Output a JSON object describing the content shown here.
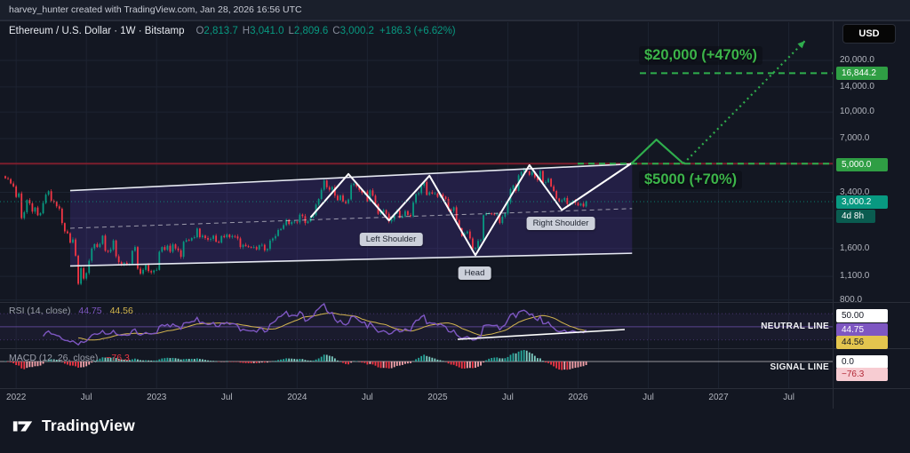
{
  "attribution": "harvey_hunter created with TradingView.com, Jan 28, 2026 16:56 UTC",
  "toolbar": {
    "currency_button": "USD"
  },
  "legend": {
    "symbol": "Ethereum / U.S. Dollar · 1W · Bitstamp",
    "o_label": "O",
    "o": "2,813.7",
    "h_label": "H",
    "h": "3,041.0",
    "l_label": "L",
    "l": "2,809.6",
    "c_label": "C",
    "c": "3,000.2",
    "change": "+186.3 (+6.62%)"
  },
  "price_axis": {
    "labels": [
      {
        "text": "20,000.0",
        "price": 20000
      },
      {
        "text": "14,000.0",
        "price": 14000
      },
      {
        "text": "10,000.0",
        "price": 10000
      },
      {
        "text": "7,000.0",
        "price": 7000
      },
      {
        "text": "3,400.0",
        "price": 3400
      },
      {
        "text": "1,600.0",
        "price": 1600
      },
      {
        "text": "1,100.0",
        "price": 1100
      },
      {
        "text": "800.0",
        "price": 800
      }
    ],
    "badges": {
      "target_high": "16,844.2",
      "target_low": "5,000.0",
      "last": "3,000.2",
      "countdown": "4d 8h"
    }
  },
  "annotations": {
    "target20k": "$20,000 (+470%)",
    "target5k": "$5000 (+70%)",
    "left_shoulder": "Left Shoulder",
    "head": "Head",
    "right_shoulder": "Right Shoulder",
    "neutral_line": "NEUTRAL LINE",
    "signal_line": "SIGNAL LINE"
  },
  "rsi": {
    "name": "RSI (14, close)",
    "value": "44.75",
    "ma": "44.56",
    "mid_badge": "50.00",
    "value_badge": "44.75",
    "ma_badge": "44.56"
  },
  "macd": {
    "name": "MACD (12, 26, close)",
    "value": "−76.3",
    "zero_badge": "0.0",
    "hist_badge": "−76.3"
  },
  "time_axis": [
    {
      "label": "2022",
      "week": 4
    },
    {
      "label": "Jul",
      "week": 30
    },
    {
      "label": "2023",
      "week": 56
    },
    {
      "label": "Jul",
      "week": 82
    },
    {
      "label": "2024",
      "week": 108
    },
    {
      "label": "Jul",
      "week": 134
    },
    {
      "label": "2025",
      "week": 160
    },
    {
      "label": "Jul",
      "week": 186
    },
    {
      "label": "2026",
      "week": 212
    },
    {
      "label": "Jul",
      "week": 238
    },
    {
      "label": "2027",
      "week": 264
    },
    {
      "label": "Jul",
      "week": 290
    }
  ],
  "logo": {
    "text": "TradingView"
  },
  "colors": {
    "up": "#089981",
    "down": "#f23645",
    "accent_green": "#3cb44a",
    "target_dash": "#2fae4d",
    "maroon": "#7c1f2d",
    "rsi": "#7e57c2",
    "rsi_ma": "#d4b64f",
    "channel_fill": "rgba(124,77,255,0.16)",
    "white": "#ffffff",
    "grid": "#1d2331",
    "separator": "#2a2e39",
    "badge_target": "#2f9e44",
    "badge_last": "#089981",
    "badge_countdown": "#0a5c50",
    "badge_neg_bg": "#f7ccd2",
    "badge_neg_text": "#b22836"
  },
  "chart_data": {
    "type": "candlestick",
    "symbol": "ETH/USD",
    "interval": "1W",
    "exchange": "Bitstamp",
    "scale": "log",
    "note": "approximate weekly closes, first value = late Dec 2021, last = Jan 2026",
    "ohlc_last": {
      "open": 2813.7,
      "high": 3041.0,
      "low": 2809.6,
      "close": 3000.2,
      "change": 186.3,
      "change_pct": 6.62
    },
    "y_ticks": [
      20000,
      14000,
      10000,
      7000,
      5000,
      3400,
      2400,
      1600,
      1100,
      800
    ],
    "weekly_closes": [
      4105,
      4060,
      3830,
      3682,
      3196,
      3351,
      2406,
      2603,
      3066,
      2930,
      2623,
      2773,
      2497,
      2566,
      2946,
      3294,
      3452,
      3037,
      2988,
      2817,
      2730,
      2250,
      2012,
      1962,
      1730,
      1805,
      1451,
      995,
      1228,
      1067,
      1150,
      1357,
      1600,
      1695,
      1630,
      1700,
      1900,
      1550,
      1530,
      1577,
      1780,
      1440,
      1330,
      1295,
      1320,
      1280,
      1300,
      1550,
      1630,
      1220,
      1140,
      1200,
      1280,
      1180,
      1160,
      1190,
      1200,
      1530,
      1630,
      1570,
      1660,
      1530,
      1690,
      1600,
      1560,
      1430,
      1750,
      1790,
      1780,
      1840,
      1860,
      2090,
      1860,
      1900,
      1840,
      1800,
      1820,
      1900,
      1750,
      1730,
      1890,
      1860,
      1930,
      1860,
      1890,
      1880,
      1830,
      1630,
      1680,
      1650,
      1630,
      1620,
      1630,
      1580,
      1670,
      1680,
      1560,
      1590,
      1780,
      1830,
      1890,
      2050,
      2080,
      2190,
      2350,
      2220,
      2280,
      2290,
      2270,
      2520,
      2470,
      2250,
      2300,
      2420,
      2500,
      2880,
      3110,
      3520,
      3990,
      3640,
      3520,
      3650,
      3250,
      3060,
      3260,
      3010,
      2940,
      3090,
      3750,
      3820,
      3680,
      3510,
      3380,
      3440,
      3010,
      3490,
      3250,
      2900,
      2550,
      2610,
      2680,
      2550,
      2300,
      2360,
      2560,
      2660,
      2420,
      2460,
      2640,
      2510,
      2470,
      2960,
      3320,
      3360,
      3720,
      3910,
      3280,
      3400,
      3340,
      3350,
      3200,
      3310,
      3210,
      3110,
      2700,
      2650,
      2780,
      2340,
      2100,
      1890,
      1960,
      2010,
      1830,
      1590,
      1610,
      1770,
      1790,
      2500,
      2550,
      2570,
      2530,
      2520,
      2550,
      2250,
      2450,
      2560,
      2970,
      3550,
      3730,
      3470,
      4270,
      4480,
      4620,
      4510,
      4300,
      4470,
      4150,
      4000,
      4530,
      3860,
      3890,
      4080,
      3680,
      3460,
      3130,
      3010,
      3050,
      3150,
      2900,
      2950,
      3030,
      2950,
      2850,
      2920,
      2813.7,
      3000.2
    ],
    "pattern": {
      "type": "inverse head and shoulders",
      "points": [
        [
          113,
          2430
        ],
        [
          127,
          4350
        ],
        [
          142,
          2330
        ],
        [
          157,
          4250
        ],
        [
          174,
          1460
        ],
        [
          194,
          4900
        ],
        [
          206,
          2680
        ],
        [
          232,
          5050
        ]
      ]
    },
    "channel": {
      "top": [
        [
          24,
          3480
        ],
        [
          232,
          4980
        ]
      ],
      "bottom": [
        [
          24,
          1265
        ],
        [
          232,
          1500
        ]
      ]
    },
    "levels": {
      "resistance_red": 5000,
      "target_1": 5000,
      "target_2": 16844.2,
      "last": 3000.2
    },
    "projection": [
      [
        232,
        5050
      ],
      [
        241,
        6900
      ],
      [
        251,
        5000
      ],
      [
        296,
        26000
      ]
    ],
    "rsi": {
      "value": 44.75,
      "ma": 44.56,
      "neutral": 50.0
    },
    "macd": {
      "hist_last": -76.3,
      "zero": 0.0
    }
  }
}
